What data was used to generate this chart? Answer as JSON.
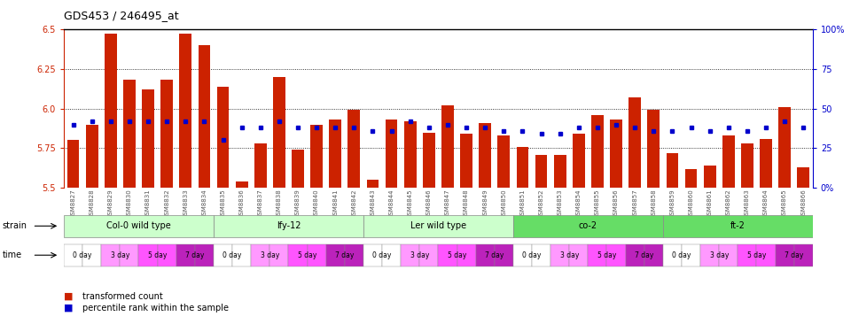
{
  "title": "GDS453 / 246495_at",
  "samples": [
    "GSM8827",
    "GSM8828",
    "GSM8829",
    "GSM8830",
    "GSM8831",
    "GSM8832",
    "GSM8833",
    "GSM8834",
    "GSM8835",
    "GSM8836",
    "GSM8837",
    "GSM8838",
    "GSM8839",
    "GSM8840",
    "GSM8841",
    "GSM8842",
    "GSM8843",
    "GSM8844",
    "GSM8845",
    "GSM8846",
    "GSM8847",
    "GSM8848",
    "GSM8849",
    "GSM8850",
    "GSM8851",
    "GSM8852",
    "GSM8853",
    "GSM8854",
    "GSM8855",
    "GSM8856",
    "GSM8857",
    "GSM8858",
    "GSM8859",
    "GSM8860",
    "GSM8861",
    "GSM8862",
    "GSM8863",
    "GSM8864",
    "GSM8865",
    "GSM8866"
  ],
  "red_values": [
    5.8,
    5.9,
    6.47,
    6.18,
    6.12,
    6.18,
    6.47,
    6.4,
    6.14,
    5.54,
    5.78,
    6.2,
    5.74,
    5.9,
    5.93,
    5.99,
    5.55,
    5.93,
    5.92,
    5.85,
    6.02,
    5.84,
    5.91,
    5.83,
    5.76,
    5.71,
    5.71,
    5.84,
    5.96,
    5.93,
    6.07,
    5.99,
    5.72,
    5.62,
    5.64,
    5.83,
    5.78,
    5.81,
    6.01,
    5.63
  ],
  "blue_values": [
    40,
    42,
    42,
    42,
    42,
    42,
    42,
    42,
    30,
    38,
    38,
    42,
    38,
    38,
    38,
    38,
    36,
    36,
    42,
    38,
    40,
    38,
    38,
    36,
    36,
    34,
    34,
    38,
    38,
    40,
    38,
    36,
    36,
    38,
    36,
    38,
    36,
    38,
    42,
    38
  ],
  "ylim_left": [
    5.5,
    6.5
  ],
  "ylim_right": [
    0,
    100
  ],
  "yticks_left": [
    5.5,
    5.75,
    6.0,
    6.25,
    6.5
  ],
  "yticks_right": [
    0,
    25,
    50,
    75,
    100
  ],
  "ytick_labels_right": [
    "0%",
    "25",
    "50",
    "75",
    "100%"
  ],
  "strains": [
    {
      "label": "Col-0 wild type",
      "start": 0,
      "end": 7,
      "color": "#ccffcc"
    },
    {
      "label": "lfy-12",
      "start": 8,
      "end": 15,
      "color": "#ccffcc"
    },
    {
      "label": "Ler wild type",
      "start": 16,
      "end": 23,
      "color": "#ccffcc"
    },
    {
      "label": "co-2",
      "start": 24,
      "end": 31,
      "color": "#66dd66"
    },
    {
      "label": "ft-2",
      "start": 32,
      "end": 39,
      "color": "#66dd66"
    }
  ],
  "time_groups": [
    {
      "label": "0 day",
      "color": "#ffffff",
      "indices": [
        0,
        1,
        8,
        9,
        16,
        17,
        24,
        25,
        32,
        33
      ]
    },
    {
      "label": "3 day",
      "color": "#ff99ff",
      "indices": [
        2,
        3,
        10,
        11,
        18,
        19,
        26,
        27,
        34,
        35
      ]
    },
    {
      "label": "5 day",
      "color": "#ff55ff",
      "indices": [
        4,
        5,
        12,
        13,
        20,
        21,
        28,
        29,
        36,
        37
      ]
    },
    {
      "label": "7 day",
      "color": "#bb22bb",
      "indices": [
        6,
        7,
        14,
        15,
        22,
        23,
        30,
        31,
        38,
        39
      ]
    }
  ],
  "bar_color": "#cc2200",
  "dot_color": "#0000cc",
  "ylabel_left_color": "#cc2200",
  "ylabel_right_color": "#0000cc"
}
